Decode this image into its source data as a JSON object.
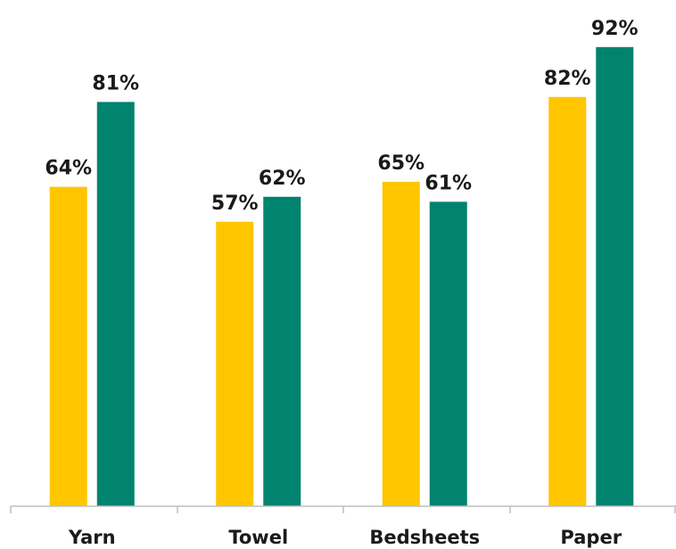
{
  "chart_data": {
    "type": "bar",
    "categories": [
      "Yarn",
      "Towel",
      "Bedsheets",
      "Paper"
    ],
    "series": [
      {
        "values": [
          64,
          57,
          65,
          82
        ],
        "labels": [
          "64%",
          "57%",
          "65%",
          "82%"
        ],
        "color": "#FFC600"
      },
      {
        "values": [
          81,
          62,
          61,
          92
        ],
        "labels": [
          "81%",
          "62%",
          "61%",
          "92%"
        ],
        "color": "#00836F"
      }
    ],
    "title": "",
    "xlabel": "",
    "ylabel": "",
    "ylim": [
      0,
      100
    ],
    "grid": false,
    "legend": "none",
    "axis_color": "#BFBFBF"
  }
}
